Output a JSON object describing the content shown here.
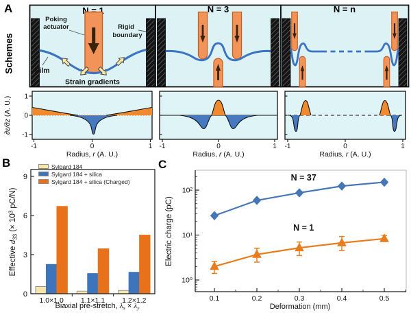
{
  "panel_a": {
    "label": "A",
    "row_label": "Schemes",
    "schemes": [
      {
        "title": "N = 1",
        "labels": {
          "poking_1": "Poking",
          "poking_2": "actuator",
          "rigid_1": "Rigid",
          "rigid_2": "boundary",
          "film": "Film",
          "strain_gradients": "Strain gradients"
        }
      },
      {
        "title": "N = 3"
      },
      {
        "title": "N = n"
      }
    ],
    "profile_plots": {
      "ylabel_var": "∂ε/∂z",
      "ylabel_unit": " (A. U.)",
      "yticks": [
        "1",
        "0",
        "-1"
      ],
      "xticks": [
        "-1",
        "0",
        "1"
      ],
      "xlabel_pre": "Radius, ",
      "xlabel_var": "r",
      "xlabel_post": " (A. U.)"
    }
  },
  "panel_b": {
    "label": "B",
    "ylabel": {
      "pre": "Effective ",
      "var": "d",
      "sub": "33",
      "mid": " (× 10",
      "sup": "3",
      "post": " pC/N)"
    },
    "xlabel": {
      "pre": "Biaxial pre-stretch, ",
      "var1": "λ",
      "sub1": "x",
      "mid": " × ",
      "var2": "λ",
      "sub2": "y"
    }
  },
  "panel_c": {
    "label": "C",
    "ylabel": "Electric charge (pC)",
    "xlabel": "Deformation (mm)"
  },
  "colors": {
    "scheme_background": "#DCF2F5",
    "film_blue": "#3A74C2",
    "actuator_fill": "#F2945A",
    "actuator_edge": "#C85F1C",
    "actuator_arrow": "#3A230D",
    "strain_arrow_fill": "#F6E7A6",
    "profile_positive_orange": "#F08A2E",
    "profile_negative_blue": "#4679C0"
  },
  "chart_data": [
    {
      "type": "bar",
      "panel": "B",
      "categories": [
        "1.0×1.0",
        "1.1×1.1",
        "1.2×1.2"
      ],
      "series": [
        {
          "name": "Sylgard 184",
          "color": "#F7E6A9",
          "edge": "#8a8a8a",
          "values": [
            0.55,
            0.2,
            0.25
          ]
        },
        {
          "name": "Sylgard 184 + silica",
          "color": "#3E74BC",
          "edge": "#3E74BC",
          "values": [
            2.25,
            1.55,
            1.65
          ]
        },
        {
          "name": "Sylgard 184 + silica (Charged)",
          "color": "#E8721C",
          "edge": "#E8721C",
          "values": [
            6.7,
            3.45,
            4.5
          ]
        }
      ],
      "ylabel": "Effective d33 (× 10^3 pC/N)",
      "xlabel": "Biaxial pre-stretch, λx × λy",
      "yticks": [
        0,
        3,
        6,
        9
      ],
      "ylim": [
        0,
        9.6
      ],
      "legend_position": "top-left"
    },
    {
      "type": "line",
      "panel": "C",
      "x": [
        0.1,
        0.2,
        0.3,
        0.4,
        0.5
      ],
      "xticks": [
        "0.1",
        "0.2",
        "0.3",
        "0.4",
        "0.5"
      ],
      "series": [
        {
          "name": "N = 37",
          "marker": "diamond",
          "color": "#4576B5",
          "values": [
            27,
            59,
            87,
            123,
            150
          ]
        },
        {
          "name": "N = 1",
          "marker": "triangle",
          "color": "#E87D1E",
          "values": [
            2.0,
            3.7,
            5.2,
            6.7,
            8.3
          ],
          "err_low": [
            1.4,
            2.5,
            3.5,
            4.5,
            7.2
          ],
          "err_high": [
            2.6,
            5.1,
            7.0,
            9.3,
            9.9
          ]
        }
      ],
      "ylabel": "Electric charge (pC)",
      "xlabel": "Deformation (mm)",
      "yscale": "log",
      "yticks_log": [
        {
          "exp": 0,
          "label": "10⁰"
        },
        {
          "exp": 1,
          "label": "10¹"
        },
        {
          "exp": 2,
          "label": "10²"
        }
      ],
      "ylim": [
        0.56,
        230
      ],
      "annotations": [
        {
          "text": "N = 37",
          "x": 0.31,
          "y": 163
        },
        {
          "text": "N = 1",
          "x": 0.31,
          "y": 12.5
        }
      ],
      "legend_position": "none"
    },
    {
      "type": "area",
      "panel": "A strain-gradient profiles (schematic)",
      "xlabel": "Radius, r (A. U.)",
      "ylabel": "∂ε/∂z (A. U.)",
      "xlim": [
        -1,
        1
      ],
      "ylim": [
        -1,
        1
      ],
      "subplots": [
        {
          "scheme": "N = 1",
          "positive_orange": "linear wedges ≈0.4 at r = ±1 tapering to 0 near r ≈ ±0.25",
          "negative_blue": "sharp cusp dip to -1 at r = 0",
          "zero_line": "dotted"
        },
        {
          "scheme": "N = 3",
          "positive_orange": "central bump peak ≈0.8 at r = 0",
          "negative_blue": "two dips ≈ -0.7 at r ≈ ±0.28",
          "zero_line": "solid"
        },
        {
          "scheme": "N = n",
          "positive_orange": "narrow peaks ≈0.75 at r ≈ ±0.72",
          "negative_blue": "narrow dips ≈ -0.85 at r ≈ ±0.88",
          "zero_line": "dashed"
        }
      ]
    }
  ]
}
